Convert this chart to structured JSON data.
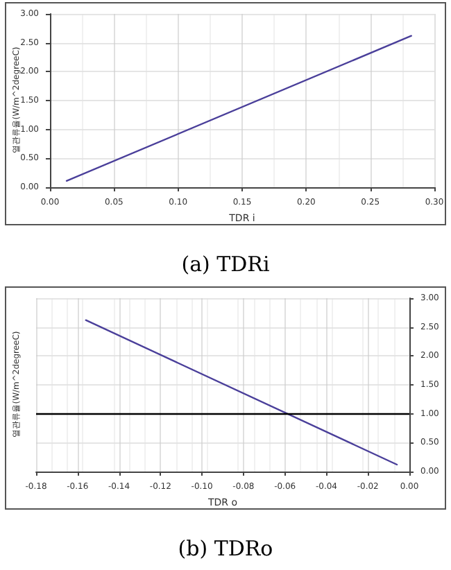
{
  "chart_data": [
    {
      "type": "line",
      "title": "(a) TDRi",
      "xlabel": "TDR i",
      "ylabel": "열관류율(W/m^2degreeC)",
      "x": [
        0.013,
        0.282
      ],
      "series": [
        {
          "color": "#4a3f9a",
          "values": [
            0.11,
            2.62
          ]
        }
      ],
      "xlim": [
        0,
        0.3
      ],
      "xticks": [
        {
          "value": 0,
          "label": "0.00"
        },
        0.05,
        {
          "value": 0.1,
          "label": "0.10"
        },
        0.15,
        {
          "value": 0.2,
          "label": "0.20"
        },
        0.25,
        {
          "value": 0.3,
          "label": "0.30"
        }
      ],
      "ylim": [
        0,
        3
      ],
      "yticks": [
        {
          "value": 0,
          "label": "0.00"
        },
        {
          "value": 0.5,
          "label": "0.50"
        },
        {
          "value": 1,
          "label": "1.00"
        },
        {
          "value": 1.5,
          "label": "1.50"
        },
        {
          "value": 2,
          "label": "2.00"
        },
        {
          "value": 2.5,
          "label": "2.50"
        },
        {
          "value": 3,
          "label": "3.00"
        }
      ],
      "grid": true,
      "marker": "none"
    },
    {
      "type": "line",
      "title": "(b) TDRo",
      "xlabel": "TDR o",
      "ylabel": "열관류율(W/m^2degreeC)",
      "x": [
        -0.156,
        -0.006
      ],
      "series": [
        {
          "color": "#4a3f9a",
          "values": [
            2.62,
            0.12
          ]
        }
      ],
      "xlim": [
        -0.18,
        0
      ],
      "xticks": [
        -0.18,
        -0.16,
        -0.14,
        -0.12,
        {
          "value": -0.1,
          "label": "-0.10"
        },
        -0.08,
        -0.06,
        -0.04,
        -0.02,
        {
          "value": 0,
          "label": "0.00"
        }
      ],
      "ylim": [
        0,
        3
      ],
      "yticks": [
        {
          "value": 0,
          "label": "0.00"
        },
        {
          "value": 0.5,
          "label": "0.50"
        },
        {
          "value": 1,
          "label": "1.00"
        },
        {
          "value": 1.5,
          "label": "1.50"
        },
        {
          "value": 2,
          "label": "2.00"
        },
        {
          "value": 2.5,
          "label": "2.50"
        },
        {
          "value": 3,
          "label": "3.00"
        }
      ],
      "ref_lines": [
        {
          "axis": "y",
          "value": 1,
          "color": "#000000"
        }
      ],
      "grid": true,
      "marker": "none"
    }
  ]
}
